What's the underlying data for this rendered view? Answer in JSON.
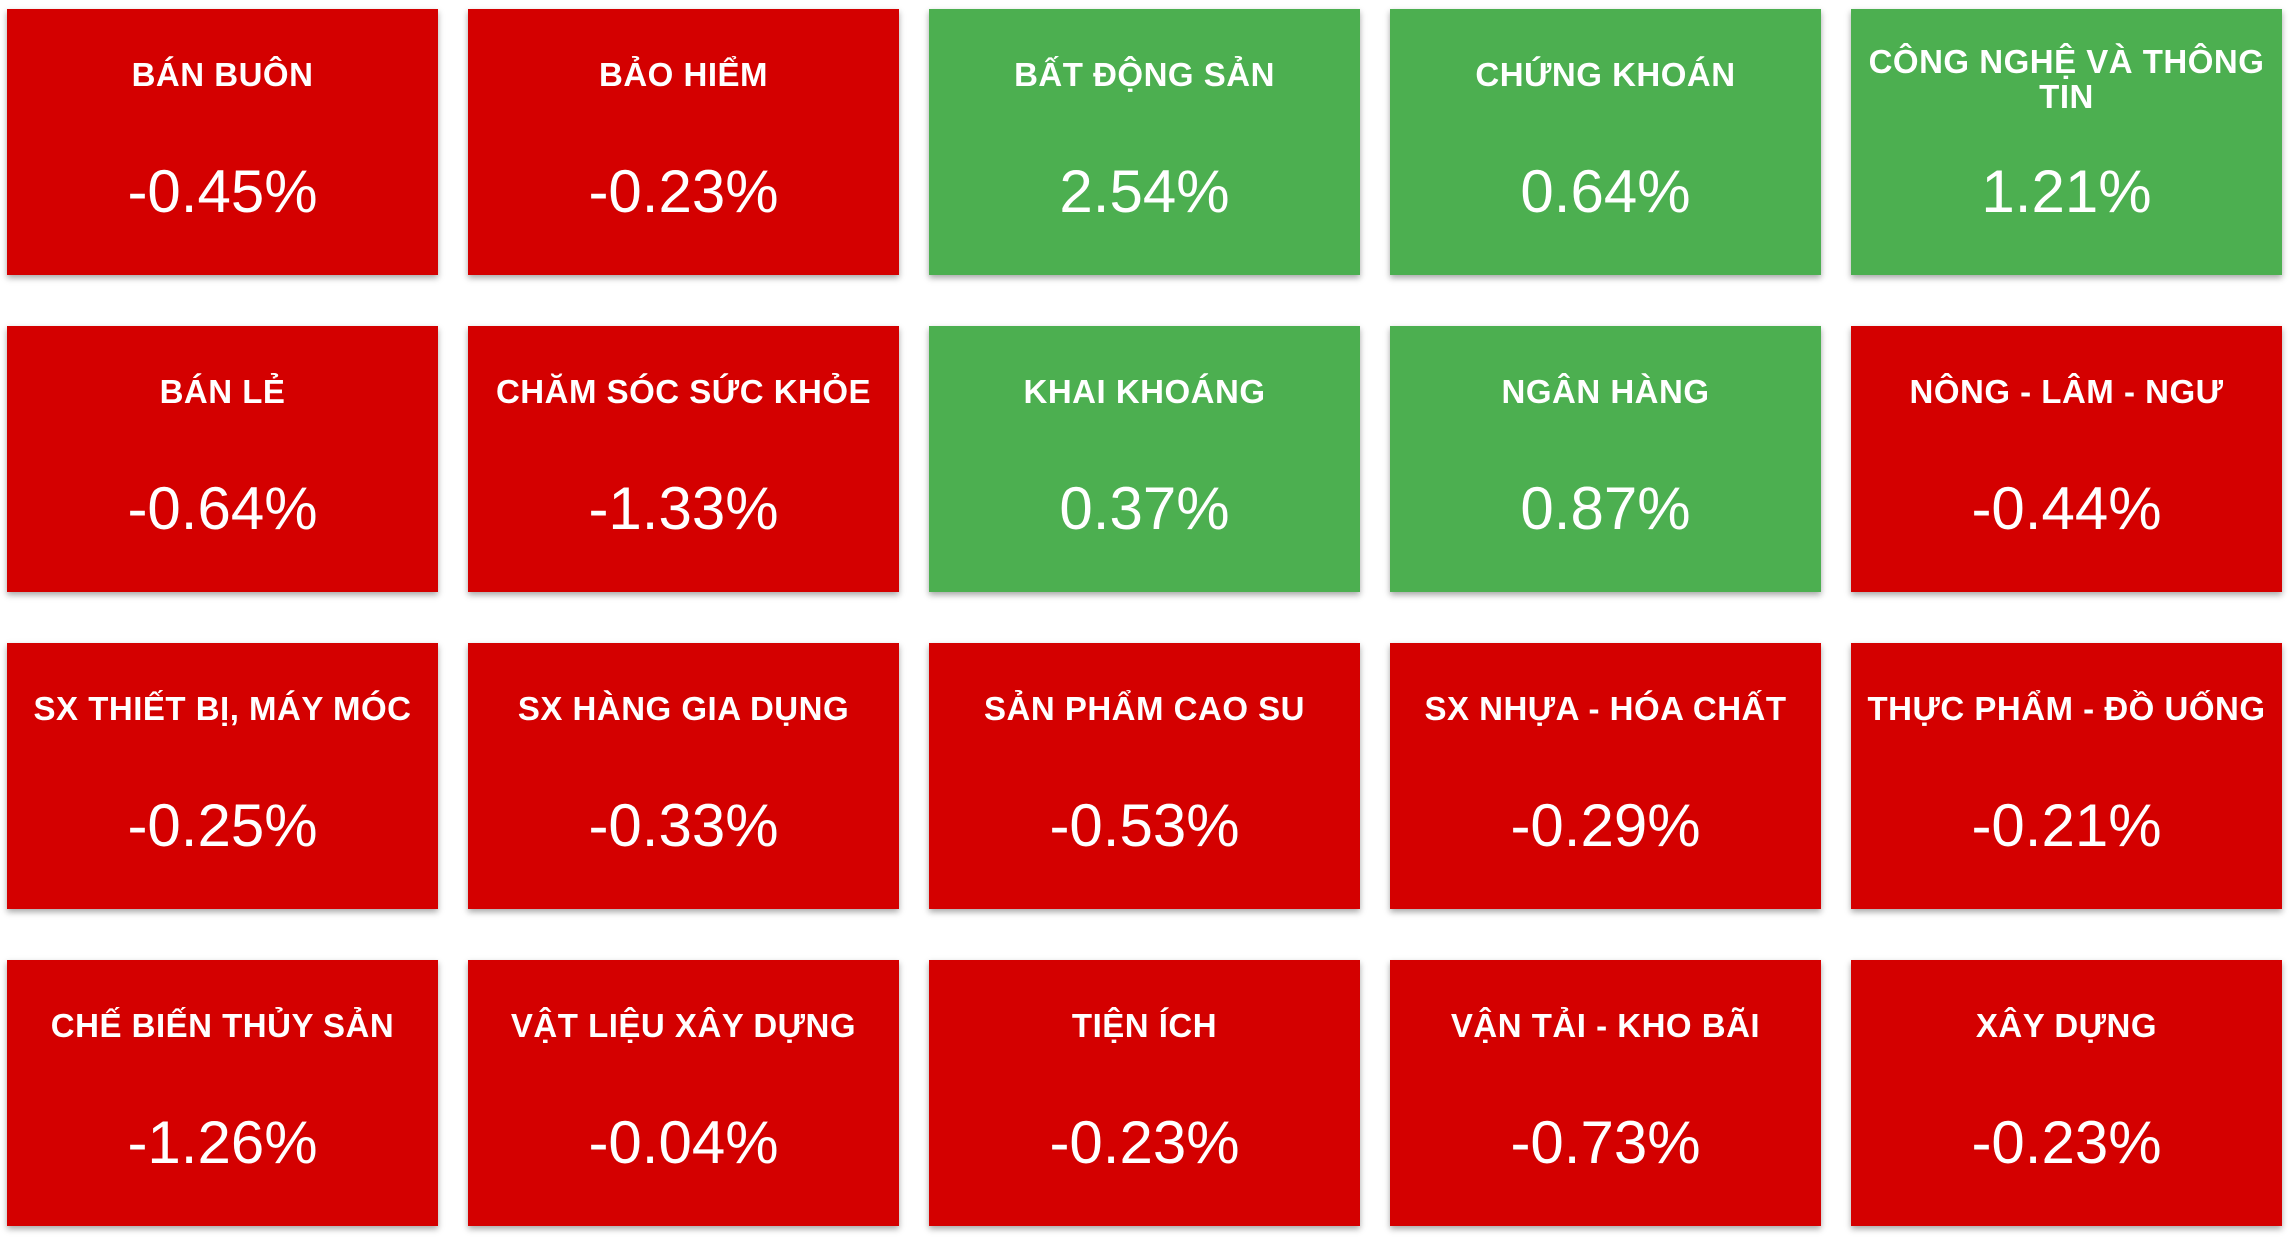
{
  "colors": {
    "down": "#d40000",
    "up": "#4caf50",
    "text": "#ffffff"
  },
  "sectors": [
    {
      "name": "BÁN BUÔN",
      "change": "-0.45%",
      "direction": "down"
    },
    {
      "name": "BẢO HIỂM",
      "change": "-0.23%",
      "direction": "down"
    },
    {
      "name": "BẤT ĐỘNG SẢN",
      "change": "2.54%",
      "direction": "up"
    },
    {
      "name": "CHỨNG KHOÁN",
      "change": "0.64%",
      "direction": "up"
    },
    {
      "name": "CÔNG NGHỆ VÀ THÔNG TIN",
      "change": "1.21%",
      "direction": "up"
    },
    {
      "name": "BÁN LẺ",
      "change": "-0.64%",
      "direction": "down"
    },
    {
      "name": "CHĂM SÓC SỨC KHỎE",
      "change": "-1.33%",
      "direction": "down"
    },
    {
      "name": "KHAI KHOÁNG",
      "change": "0.37%",
      "direction": "up"
    },
    {
      "name": "NGÂN HÀNG",
      "change": "0.87%",
      "direction": "up"
    },
    {
      "name": "NÔNG - LÂM - NGƯ",
      "change": "-0.44%",
      "direction": "down"
    },
    {
      "name": "SX THIẾT BỊ, MÁY MÓC",
      "change": "-0.25%",
      "direction": "down"
    },
    {
      "name": "SX HÀNG GIA DỤNG",
      "change": "-0.33%",
      "direction": "down"
    },
    {
      "name": "SẢN PHẨM CAO SU",
      "change": "-0.53%",
      "direction": "down"
    },
    {
      "name": "SX NHỰA - HÓA CHẤT",
      "change": "-0.29%",
      "direction": "down"
    },
    {
      "name": "THỰC PHẨM - ĐỒ UỐNG",
      "change": "-0.21%",
      "direction": "down"
    },
    {
      "name": "CHẾ BIẾN THỦY SẢN",
      "change": "-1.26%",
      "direction": "down"
    },
    {
      "name": "VẬT LIỆU XÂY DỰNG",
      "change": "-0.04%",
      "direction": "down"
    },
    {
      "name": "TIỆN ÍCH",
      "change": "-0.23%",
      "direction": "down"
    },
    {
      "name": "VẬN TẢI - KHO BÃI",
      "change": "-0.73%",
      "direction": "down"
    },
    {
      "name": "XÂY DỰNG",
      "change": "-0.23%",
      "direction": "down"
    }
  ]
}
